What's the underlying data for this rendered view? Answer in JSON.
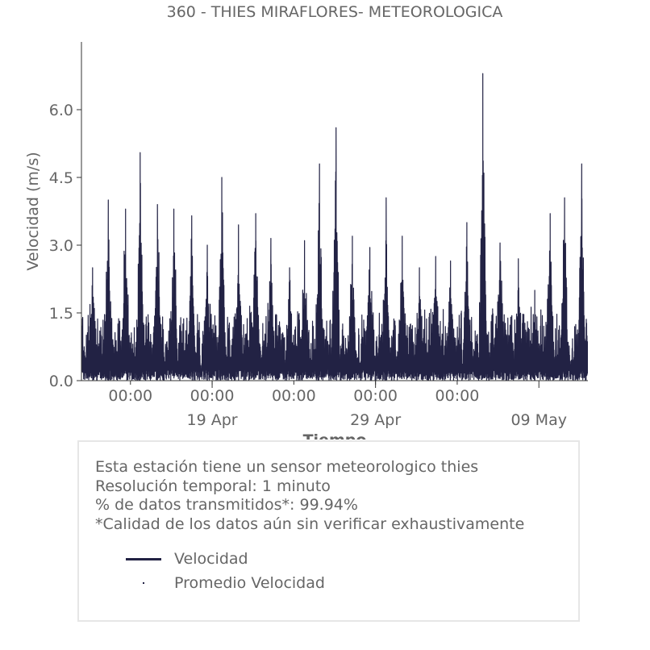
{
  "chart_data": {
    "type": "line",
    "title": "360 - THIES MIRAFLORES- METEOROLOGICA",
    "xlabel": "Tiempo",
    "ylabel": "Velocidad (m/s)",
    "x_range": [
      "2023-04-11T00:00",
      "2023-05-12T00:00"
    ],
    "ylim": [
      0,
      7.5
    ],
    "yticks": [
      0.0,
      1.5,
      3.0,
      4.5,
      6.0
    ],
    "ytick_labels": [
      "0.0",
      "1.5",
      "3.0",
      "4.5",
      "6.0"
    ],
    "x_minor_ticks": [
      {
        "x": "2023-04-14T00:00",
        "label": "00:00"
      },
      {
        "x": "2023-04-19T00:00",
        "label": "00:00"
      },
      {
        "x": "2023-04-24T00:00",
        "label": "00:00"
      },
      {
        "x": "2023-04-29T00:00",
        "label": "00:00"
      },
      {
        "x": "2023-05-04T00:00",
        "label": "00:00"
      }
    ],
    "x_major_ticks": [
      {
        "x": "2023-04-19T00:00",
        "label": "19 Apr"
      },
      {
        "x": "2023-04-29T00:00",
        "label": "29 Apr"
      },
      {
        "x": "2023-05-09T00:00",
        "label": "09 May"
      }
    ],
    "series": [
      {
        "name": "Velocidad",
        "color": "#222244",
        "daily_peaks": [
          {
            "date": "2023-04-11",
            "peak": 2.5
          },
          {
            "date": "2023-04-12",
            "peak": 4.0
          },
          {
            "date": "2023-04-13",
            "peak": 3.8
          },
          {
            "date": "2023-04-14",
            "peak": 5.05
          },
          {
            "date": "2023-04-15",
            "peak": 3.9
          },
          {
            "date": "2023-04-16",
            "peak": 3.8
          },
          {
            "date": "2023-04-17",
            "peak": 3.65
          },
          {
            "date": "2023-04-18",
            "peak": 3.0
          },
          {
            "date": "2023-04-19",
            "peak": 4.5
          },
          {
            "date": "2023-04-20",
            "peak": 3.45
          },
          {
            "date": "2023-04-21",
            "peak": 3.7
          },
          {
            "date": "2023-04-22",
            "peak": 3.15
          },
          {
            "date": "2023-04-23",
            "peak": 2.5
          },
          {
            "date": "2023-04-24",
            "peak": 3.1
          },
          {
            "date": "2023-04-25",
            "peak": 4.8
          },
          {
            "date": "2023-04-26",
            "peak": 5.6
          },
          {
            "date": "2023-04-27",
            "peak": 3.2
          },
          {
            "date": "2023-04-28",
            "peak": 2.95
          },
          {
            "date": "2023-04-29",
            "peak": 4.05
          },
          {
            "date": "2023-04-30",
            "peak": 3.2
          },
          {
            "date": "2023-05-01",
            "peak": 2.5
          },
          {
            "date": "2023-05-02",
            "peak": 2.75
          },
          {
            "date": "2023-05-03",
            "peak": 2.65
          },
          {
            "date": "2023-05-04",
            "peak": 3.5
          },
          {
            "date": "2023-05-05",
            "peak": 6.8
          },
          {
            "date": "2023-05-06",
            "peak": 3.05
          },
          {
            "date": "2023-05-07",
            "peak": 2.7
          },
          {
            "date": "2023-05-08",
            "peak": 2.0
          },
          {
            "date": "2023-05-09",
            "peak": 3.7
          },
          {
            "date": "2023-05-10",
            "peak": 4.05
          },
          {
            "date": "2023-05-11",
            "peak": 4.8
          }
        ],
        "typical_range": [
          0.0,
          2.0
        ]
      },
      {
        "name": "Promedio Velocidad",
        "color": "#222244",
        "values_visible": false
      }
    ]
  },
  "info": {
    "lines": [
      "Esta estación tiene un sensor meteorologico thies",
      "Resolución temporal: 1 minuto",
      "% de datos transmitidos*: 99.94%",
      "*Calidad de los datos aún sin verificar exhaustivamente"
    ]
  },
  "legend": [
    {
      "label": "Velocidad",
      "kind": "line"
    },
    {
      "label": "Promedio Velocidad",
      "kind": "dot"
    }
  ]
}
